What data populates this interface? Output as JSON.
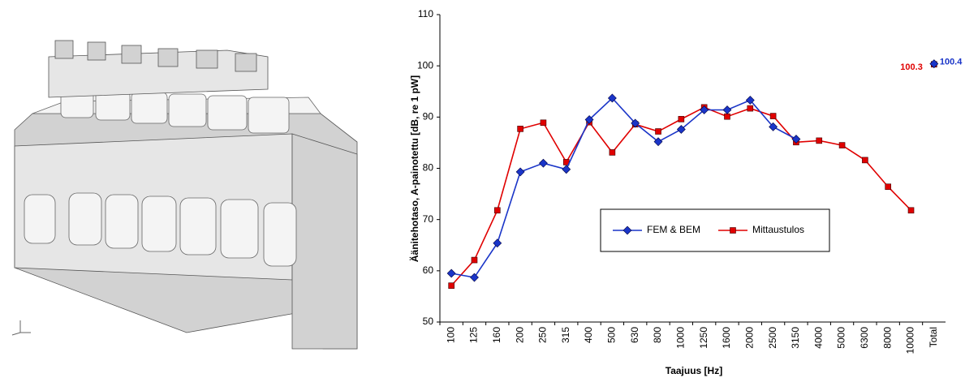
{
  "chart_data": {
    "type": "line",
    "y_label": "Äänitehotaso, A-painotettu [dB, re 1 pW]",
    "x_label": "Taajuus [Hz]",
    "categories": [
      "100",
      "125",
      "160",
      "200",
      "250",
      "315",
      "400",
      "500",
      "630",
      "800",
      "1000",
      "1250",
      "1600",
      "2000",
      "2500",
      "3150",
      "4000",
      "5000",
      "6300",
      "8000",
      "10000",
      "Total"
    ],
    "series": [
      {
        "name": "FEM & BEM",
        "color": "#1a35c8",
        "marker": "diamond",
        "values": [
          59.5,
          58.7,
          65.4,
          79.3,
          81.0,
          79.8,
          89.5,
          93.7,
          88.8,
          85.2,
          87.6,
          91.4,
          91.4,
          93.3,
          88.1,
          85.7,
          null,
          null,
          null,
          null,
          null,
          100.4
        ]
      },
      {
        "name": "Mittaustulos",
        "color": "#e00000",
        "marker": "square",
        "values": [
          57.1,
          62.1,
          71.8,
          87.7,
          88.9,
          81.2,
          89.0,
          83.1,
          88.6,
          87.2,
          89.6,
          91.9,
          90.1,
          91.7,
          90.2,
          85.1,
          85.4,
          84.5,
          81.6,
          76.4,
          71.8,
          100.3
        ]
      }
    ],
    "line_break_before_last": true,
    "ylim": [
      50,
      110
    ],
    "yticks": [
      50,
      60,
      70,
      80,
      90,
      100,
      110
    ],
    "grid": false,
    "legend": "center"
  }
}
